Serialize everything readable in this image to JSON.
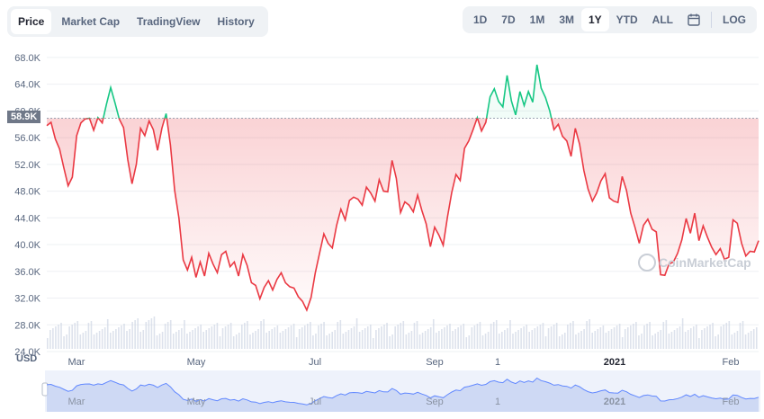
{
  "tabs": [
    "Price",
    "Market Cap",
    "TradingView",
    "History"
  ],
  "active_tab": "Price",
  "ranges": [
    "1D",
    "7D",
    "1M",
    "3M",
    "1Y",
    "YTD",
    "ALL"
  ],
  "active_range": "1Y",
  "log_label": "LOG",
  "currency_label": "USD",
  "current_price_label": "58.9K",
  "watermark": "CoinMarketCap",
  "colors": {
    "up": "#16c784",
    "down": "#ea3943",
    "axis_text": "#58667e",
    "volume": "#cfd6e4",
    "navigator_line": "#6188ff"
  },
  "chart_data": {
    "type": "line",
    "title": "",
    "xlabel": "",
    "ylabel": "USD",
    "ylim": [
      24000,
      70000
    ],
    "y_ticks": [
      "68.0K",
      "64.0K",
      "60.0K",
      "56.0K",
      "52.0K",
      "48.0K",
      "44.0K",
      "40.0K",
      "36.0K",
      "32.0K",
      "28.0K",
      "24.0K"
    ],
    "x_tick_labels": [
      "Mar",
      "May",
      "Jul",
      "Sep",
      "1",
      "2021",
      "Feb"
    ],
    "baseline_price": 58900,
    "series": [
      {
        "values": [
          57800,
          58300,
          55800,
          54300,
          51500,
          48800,
          50100,
          56300,
          58200,
          58800,
          58900,
          57100,
          59000,
          58200,
          61000,
          63500,
          61200,
          58800,
          57500,
          52700,
          49100,
          52000,
          57400,
          56300,
          58500,
          57200,
          54100,
          57400,
          59600,
          54900,
          48100,
          44000,
          37700,
          36200,
          38100,
          35100,
          37400,
          35300,
          38700,
          37100,
          35800,
          38500,
          39000,
          36700,
          37400,
          35300,
          38500,
          36900,
          34300,
          33900,
          31900,
          33600,
          34600,
          33200,
          34800,
          35800,
          34300,
          33700,
          33500,
          32200,
          31500,
          30200,
          32100,
          35800,
          38700,
          41600,
          40200,
          39500,
          42900,
          45300,
          43700,
          46600,
          47100,
          46800,
          45900,
          48600,
          47700,
          46500,
          49700,
          48000,
          47900,
          52600,
          49900,
          44800,
          46400,
          45900,
          44900,
          47400,
          45100,
          43100,
          39700,
          42600,
          41400,
          39900,
          44100,
          47800,
          50500,
          49600,
          54400,
          55500,
          57200,
          59000,
          57000,
          58300,
          62100,
          63300,
          61400,
          60600,
          65300,
          61500,
          59400,
          62900,
          60800,
          62900,
          61300,
          66900,
          63400,
          62000,
          60000,
          57200,
          58000,
          56200,
          55500,
          53200,
          57400,
          55000,
          51100,
          48300,
          46500,
          47700,
          49500,
          50600,
          47000,
          46500,
          46300,
          50200,
          48100,
          44700,
          42600,
          40200,
          42900,
          43800,
          42300,
          41900,
          35500,
          35400,
          37100,
          37400,
          38700,
          40700,
          43900,
          41700,
          44700,
          40600,
          42800,
          41100,
          39600,
          38500,
          39400,
          37800,
          38100,
          43700,
          43200,
          40200,
          38300,
          39000,
          38900,
          40600
        ]
      }
    ],
    "navigator_x_labels": [
      "Mar",
      "May",
      "Jul",
      "Sep",
      "1",
      "2021",
      "Feb"
    ]
  }
}
